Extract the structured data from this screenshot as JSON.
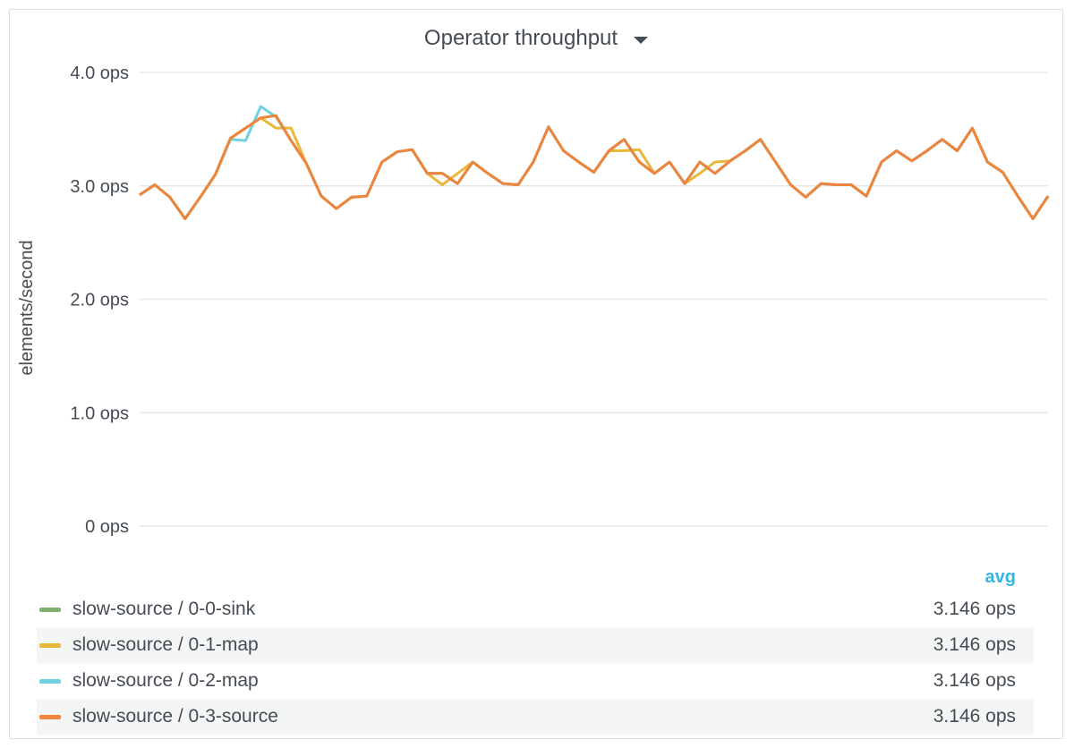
{
  "panel": {
    "title": "Operator throughput"
  },
  "chart_data": {
    "type": "line",
    "title": "",
    "ylabel": "elements/second",
    "xlabel": "",
    "ylim": [
      0,
      4
    ],
    "yticks": [
      {
        "value": 4,
        "label": "4.0 ops"
      },
      {
        "value": 3,
        "label": "3.0 ops"
      },
      {
        "value": 2,
        "label": "2.0 ops"
      },
      {
        "value": 1,
        "label": "1.0 ops"
      },
      {
        "value": 0,
        "label": "0 ops"
      }
    ],
    "grid": true,
    "x": [
      0,
      1,
      2,
      3,
      4,
      5,
      6,
      7,
      8,
      9,
      10,
      11,
      12,
      13,
      14,
      15,
      16,
      17,
      18,
      19,
      20,
      21,
      22,
      23,
      24,
      25,
      26,
      27,
      28,
      29,
      30,
      31,
      32,
      33,
      34,
      35,
      36,
      37,
      38,
      39,
      40,
      41,
      42,
      43,
      44,
      45,
      46,
      47,
      48,
      49,
      50,
      51,
      52,
      53,
      54,
      55,
      56,
      57,
      58,
      59,
      60
    ],
    "series": [
      {
        "name": "slow-source / 0-0-sink",
        "color": "#7eb26d",
        "values": [
          2.92,
          3.01,
          2.9,
          2.71,
          2.9,
          3.1,
          3.42,
          3.51,
          3.6,
          3.62,
          3.4,
          3.2,
          2.91,
          2.8,
          2.9,
          2.91,
          3.21,
          3.3,
          3.32,
          3.11,
          3.11,
          3.02,
          3.21,
          3.11,
          3.02,
          3.01,
          3.21,
          3.52,
          3.31,
          3.21,
          3.12,
          3.31,
          3.41,
          3.21,
          3.11,
          3.21,
          3.02,
          3.21,
          3.11,
          3.22,
          3.31,
          3.41,
          3.21,
          3.01,
          2.9,
          3.02,
          3.01,
          3.01,
          2.91,
          3.21,
          3.31,
          3.22,
          3.31,
          3.41,
          3.31,
          3.51,
          3.21,
          3.12,
          2.91,
          2.71,
          2.91
        ]
      },
      {
        "name": "slow-source / 0-1-map",
        "color": "#eab839",
        "values": [
          2.92,
          3.01,
          2.9,
          2.71,
          2.9,
          3.1,
          3.42,
          3.51,
          3.6,
          3.51,
          3.51,
          3.2,
          2.91,
          2.8,
          2.9,
          2.91,
          3.21,
          3.3,
          3.32,
          3.11,
          3.01,
          3.11,
          3.21,
          3.11,
          3.02,
          3.01,
          3.21,
          3.52,
          3.31,
          3.21,
          3.12,
          3.31,
          3.31,
          3.32,
          3.11,
          3.21,
          3.02,
          3.11,
          3.21,
          3.22,
          3.31,
          3.41,
          3.21,
          3.01,
          2.9,
          3.02,
          3.01,
          3.01,
          2.91,
          3.21,
          3.31,
          3.22,
          3.31,
          3.41,
          3.31,
          3.51,
          3.21,
          3.12,
          2.91,
          2.71,
          2.91
        ]
      },
      {
        "name": "slow-source / 0-2-map",
        "color": "#6ed0e0",
        "values": [
          2.92,
          3.01,
          2.9,
          2.71,
          2.9,
          3.1,
          3.41,
          3.4,
          3.7,
          3.61,
          3.4,
          3.2,
          2.91,
          2.8,
          2.9,
          2.91,
          3.21,
          3.3,
          3.32,
          3.11,
          3.11,
          3.02,
          3.21,
          3.11,
          3.02,
          3.01,
          3.21,
          3.52,
          3.31,
          3.21,
          3.12,
          3.31,
          3.41,
          3.21,
          3.11,
          3.21,
          3.02,
          3.21,
          3.11,
          3.22,
          3.31,
          3.41,
          3.21,
          3.01,
          2.9,
          3.02,
          3.01,
          3.01,
          2.91,
          3.21,
          3.31,
          3.22,
          3.31,
          3.41,
          3.31,
          3.51,
          3.21,
          3.12,
          2.91,
          2.71,
          2.91
        ]
      },
      {
        "name": "slow-source / 0-3-source",
        "color": "#ef843c",
        "values": [
          2.92,
          3.01,
          2.9,
          2.71,
          2.9,
          3.1,
          3.42,
          3.51,
          3.6,
          3.62,
          3.4,
          3.2,
          2.91,
          2.8,
          2.9,
          2.91,
          3.21,
          3.3,
          3.32,
          3.11,
          3.11,
          3.02,
          3.21,
          3.11,
          3.02,
          3.01,
          3.21,
          3.52,
          3.31,
          3.21,
          3.12,
          3.31,
          3.41,
          3.21,
          3.11,
          3.21,
          3.02,
          3.21,
          3.11,
          3.22,
          3.31,
          3.41,
          3.21,
          3.01,
          2.9,
          3.02,
          3.01,
          3.01,
          2.91,
          3.21,
          3.31,
          3.22,
          3.31,
          3.41,
          3.31,
          3.51,
          3.21,
          3.12,
          2.91,
          2.71,
          2.91
        ]
      }
    ]
  },
  "legend": {
    "avg_header": "avg",
    "items": [
      {
        "name": "slow-source / 0-0-sink",
        "color": "#7eb26d",
        "avg": "3.146 ops"
      },
      {
        "name": "slow-source / 0-1-map",
        "color": "#eab839",
        "avg": "3.146 ops"
      },
      {
        "name": "slow-source / 0-2-map",
        "color": "#6ed0e0",
        "avg": "3.146 ops"
      },
      {
        "name": "slow-source / 0-3-source",
        "color": "#ef843c",
        "avg": "3.146 ops"
      }
    ]
  }
}
